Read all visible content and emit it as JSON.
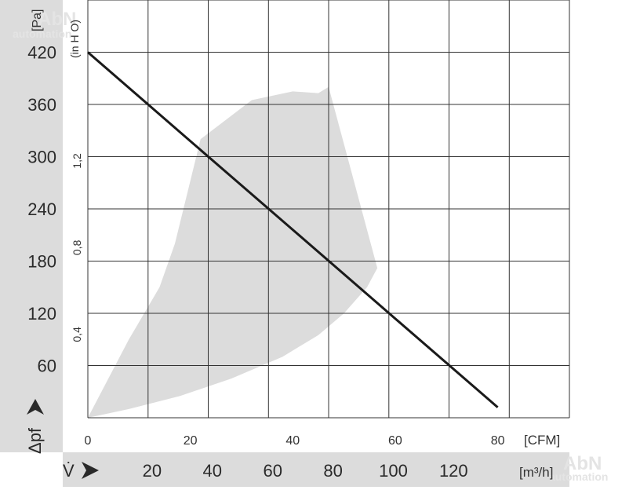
{
  "colors": {
    "band": "#dcdcdc",
    "operating_area": "#dcdcdc",
    "grid": "#333333",
    "curve": "#1a1a1a"
  },
  "y_axis": {
    "unit": "[Pa]",
    "label": "Δpf",
    "secondary_unit": "(in H O)",
    "ticks": [
      60,
      120,
      180,
      240,
      300,
      360,
      420
    ],
    "secondary_ticks": [
      "0,4",
      "0,8",
      "1,2"
    ]
  },
  "x_axis": {
    "cfm_unit": "[CFM]",
    "cfm_ticks": [
      0,
      20,
      40,
      60,
      80
    ],
    "m3h_label": "V̇",
    "m3h_unit": "[m³/h]",
    "m3h_ticks": [
      20,
      40,
      60,
      80,
      100,
      120
    ]
  },
  "watermark": {
    "text_top": "AbN",
    "text_bottom": "automation"
  },
  "chart_data": {
    "type": "line",
    "x_unit": "CFM",
    "y_unit": "Pa",
    "xlim": [
      0,
      94
    ],
    "ylim": [
      0,
      480
    ],
    "grid": true,
    "series": [
      {
        "x": [
          0,
          20,
          40,
          60,
          80
        ],
        "y": [
          420,
          318,
          216,
          114,
          12
        ]
      }
    ],
    "operating_area": {
      "x": [
        0,
        8,
        14,
        17,
        22,
        32,
        40,
        45,
        47,
        56.5,
        54.5,
        50,
        45,
        38,
        28,
        18,
        8,
        0
      ],
      "y": [
        0,
        90,
        150,
        200,
        320,
        365,
        375,
        373,
        380,
        172,
        150,
        120,
        95,
        70,
        45,
        25,
        10,
        0
      ]
    }
  }
}
